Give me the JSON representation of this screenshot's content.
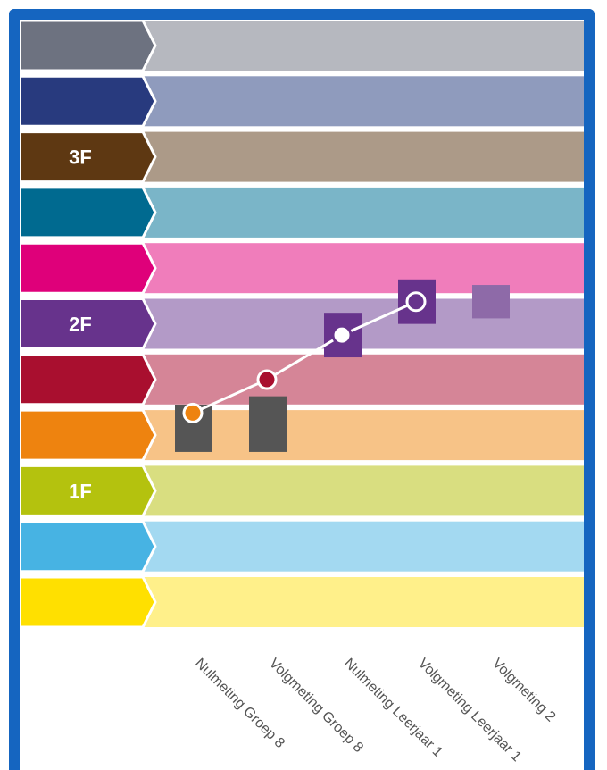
{
  "chart_data": {
    "type": "line",
    "title": "",
    "xlabel": "",
    "ylabel": "",
    "grid": false,
    "legend": "none",
    "levels": [
      {
        "label": "",
        "color": "#6d7280",
        "band": "#b6b8bf"
      },
      {
        "label": "",
        "color": "#283a7e",
        "band": "#8f9bbd"
      },
      {
        "label": "3F",
        "color": "#5e3812",
        "band": "#ac9a88"
      },
      {
        "label": "",
        "color": "#006a90",
        "band": "#7ab5c8"
      },
      {
        "label": "",
        "color": "#df007a",
        "band": "#f07dbb"
      },
      {
        "label": "2F",
        "color": "#67338c",
        "band": "#b39ac7"
      },
      {
        "label": "",
        "color": "#a90f2f",
        "band": "#d58597"
      },
      {
        "label": "",
        "color": "#ee830f",
        "band": "#f7c387"
      },
      {
        "label": "1F",
        "color": "#b4c20e",
        "band": "#d9de80"
      },
      {
        "label": "",
        "color": "#47b3e3",
        "band": "#a3d9f1"
      },
      {
        "label": "",
        "color": "#ffe000",
        "band": "#fff08a"
      }
    ],
    "categories": [
      "Nulmeting Groep 8",
      "Volgmeting Groep 8",
      "Nulmeting Leerjaar 1",
      "Volgmeting Leerjaar 1",
      "Volgmeting 2"
    ],
    "y_unit_note": "level index from bottom band (0) to top band (11)",
    "ylim": [
      0,
      11
    ],
    "ranges": [
      {
        "low": 3.2,
        "high": 4.05,
        "color": "#555555"
      },
      {
        "low": 3.2,
        "high": 4.2,
        "color": "#555555"
      },
      {
        "low": 4.9,
        "high": 5.7,
        "color": "#67338c"
      },
      {
        "low": 5.5,
        "high": 6.3,
        "color": "#67338c"
      },
      {
        "low": 5.6,
        "high": 6.2,
        "color": "#8e6aa8"
      }
    ],
    "line": {
      "name": "",
      "values": [
        3.9,
        4.5,
        5.3,
        5.9,
        null
      ],
      "point_colors": [
        "#ee830f",
        "#a90f2f",
        "#67338c",
        "#67338c"
      ],
      "hollow": [
        false,
        false,
        true,
        false
      ]
    }
  }
}
